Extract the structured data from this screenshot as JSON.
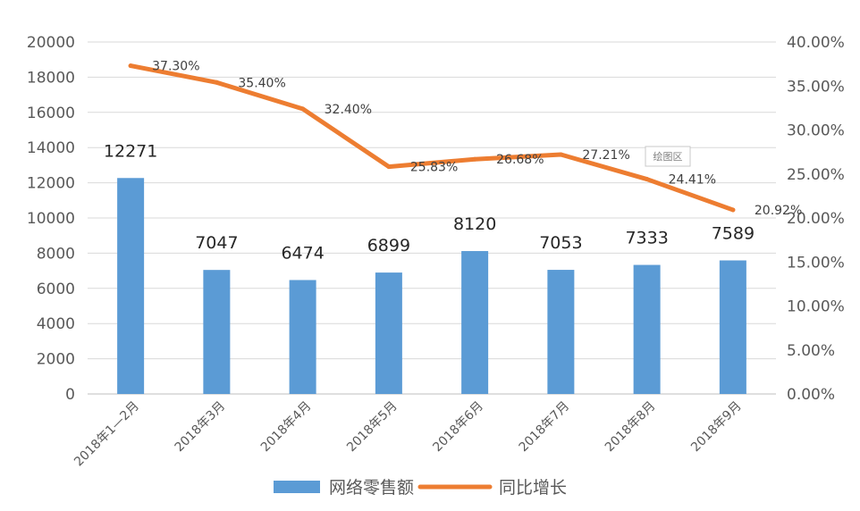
{
  "chart_data": {
    "type": "bar",
    "categories": [
      "2018年1—2月",
      "2018年3月",
      "2018年4月",
      "2018年5月",
      "2018年6月",
      "2018年7月",
      "2018年8月",
      "2018年9月"
    ],
    "series": [
      {
        "name": "网络零售额",
        "type": "bar",
        "axis": "left",
        "color": "#5B9BD5",
        "values": [
          12271,
          7047,
          6474,
          6899,
          8120,
          7053,
          7333,
          7589
        ],
        "labels": [
          "12271",
          "7047",
          "6474",
          "6899",
          "8120",
          "7053",
          "7333",
          "7589"
        ]
      },
      {
        "name": "同比增长",
        "type": "line",
        "axis": "right",
        "color": "#ED7D31",
        "values": [
          37.3,
          35.4,
          32.4,
          25.83,
          26.68,
          27.21,
          24.41,
          20.92
        ],
        "labels": [
          "37.30%",
          "35.40%",
          "32.40%",
          "25.83%",
          "26.68%",
          "27.21%",
          "24.41%",
          "20.92%"
        ]
      }
    ],
    "y_left": {
      "range": [
        0,
        20000
      ],
      "ticks": [
        0,
        2000,
        4000,
        6000,
        8000,
        10000,
        12000,
        14000,
        16000,
        18000,
        20000
      ],
      "tick_labels": [
        "0",
        "2000",
        "4000",
        "6000",
        "8000",
        "10000",
        "12000",
        "14000",
        "16000",
        "18000",
        "20000"
      ]
    },
    "y_right": {
      "range": [
        0,
        40
      ],
      "ticks": [
        0,
        5,
        10,
        15,
        20,
        25,
        30,
        35,
        40
      ],
      "tick_labels": [
        "0.00%",
        "5.00%",
        "10.00%",
        "15.00%",
        "20.00%",
        "25.00%",
        "30.00%",
        "35.00%",
        "40.00%"
      ]
    },
    "grid": true,
    "legend_position": "bottom",
    "tooltip_text": "绘图区"
  }
}
